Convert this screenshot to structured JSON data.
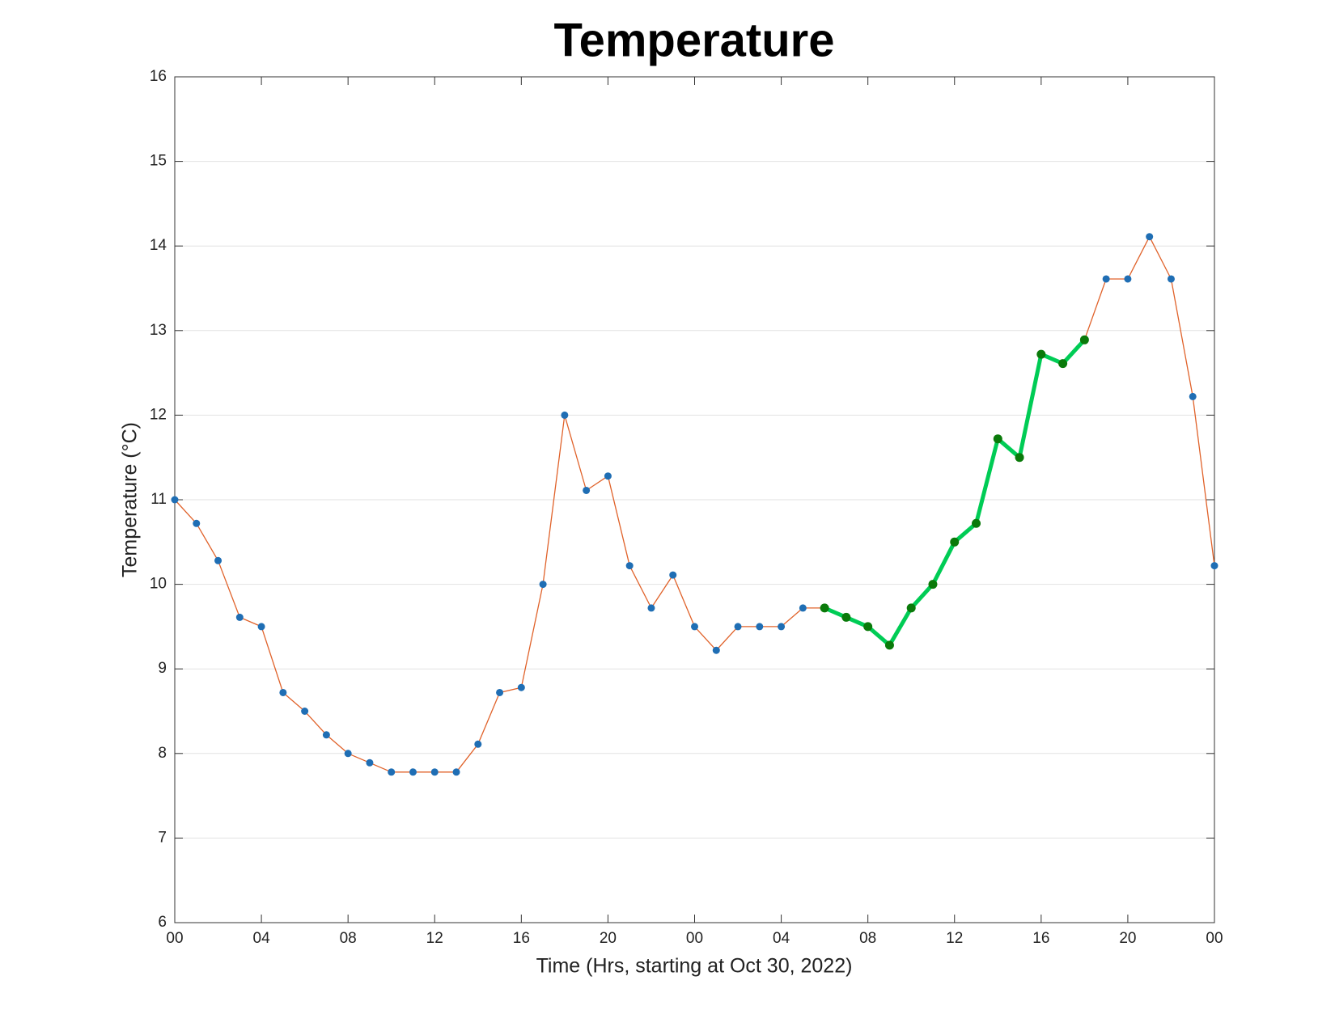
{
  "chart_data": {
    "type": "line",
    "title": "Temperature",
    "xlabel": "Time (Hrs, starting at Oct 30, 2022)",
    "ylabel": "Temperature (°C)",
    "x": [
      0,
      1,
      2,
      3,
      4,
      5,
      6,
      7,
      8,
      9,
      10,
      11,
      12,
      13,
      14,
      15,
      16,
      17,
      18,
      19,
      20,
      21,
      22,
      23,
      24,
      25,
      26,
      27,
      28,
      29,
      30,
      31,
      32,
      33,
      34,
      35,
      36,
      37,
      38,
      39,
      40,
      41,
      42,
      43,
      44,
      45,
      46,
      47,
      48
    ],
    "series": [
      {
        "color": "#e0622a",
        "marker_color": "#1f6eb4",
        "values": [
          11,
          10.72,
          10.28,
          9.61,
          9.5,
          8.72,
          8.5,
          8.22,
          8.0,
          7.89,
          7.78,
          7.78,
          7.78,
          7.78,
          8.11,
          8.72,
          8.78,
          10.0,
          12.0,
          11.11,
          11.28,
          10.22,
          9.72,
          10.11,
          9.5,
          9.22,
          9.5,
          9.5,
          9.5,
          9.72,
          9.72,
          9.61,
          9.5,
          9.28,
          9.72,
          10.0,
          10.5,
          10.72,
          11.72,
          11.5,
          12.72,
          12.61,
          12.89,
          13.61,
          13.61,
          14.11,
          13.61,
          12.22,
          10.22
        ]
      },
      {
        "color": "#00cc55",
        "marker_color": "#0a7a0a",
        "values": [
          null,
          null,
          null,
          null,
          null,
          null,
          null,
          null,
          null,
          null,
          null,
          null,
          null,
          null,
          null,
          null,
          null,
          null,
          null,
          null,
          null,
          null,
          null,
          null,
          null,
          null,
          null,
          null,
          null,
          null,
          9.72,
          9.61,
          9.5,
          9.28,
          9.72,
          10.0,
          10.5,
          10.72,
          11.72,
          11.5,
          12.72,
          12.61,
          12.89,
          null,
          null,
          null,
          null,
          null,
          null
        ]
      }
    ],
    "xlim": [
      0,
      48
    ],
    "xticks": [
      {
        "value": 0,
        "label": "00"
      },
      {
        "value": 4,
        "label": "04"
      },
      {
        "value": 8,
        "label": "08"
      },
      {
        "value": 12,
        "label": "12"
      },
      {
        "value": 16,
        "label": "16"
      },
      {
        "value": 20,
        "label": "20"
      },
      {
        "value": 24,
        "label": "00"
      },
      {
        "value": 28,
        "label": "04"
      },
      {
        "value": 32,
        "label": "08"
      },
      {
        "value": 36,
        "label": "12"
      },
      {
        "value": 40,
        "label": "16"
      },
      {
        "value": 44,
        "label": "20"
      },
      {
        "value": 48,
        "label": "00"
      }
    ],
    "ylim": [
      6,
      16
    ],
    "yticks": [
      6,
      7,
      8,
      9,
      10,
      11,
      12,
      13,
      14,
      15,
      16
    ],
    "grid": true
  }
}
